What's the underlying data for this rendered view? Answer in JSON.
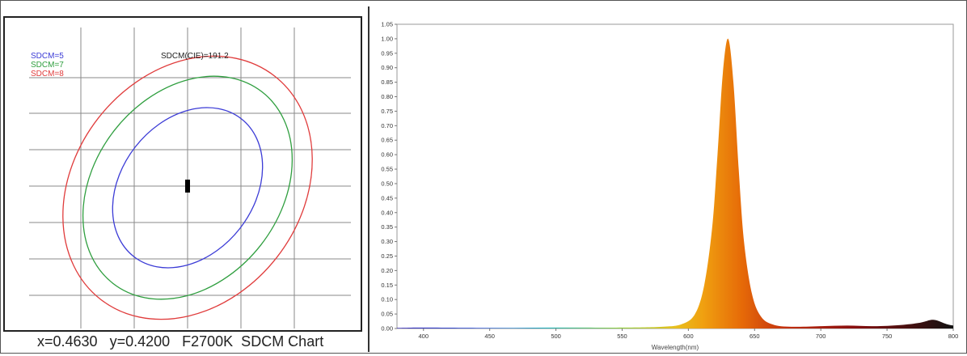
{
  "sdcm_caption": "x=0.4630   y=0.4200   F2700K  SDCM Chart",
  "chart_data": [
    {
      "type": "scatter",
      "title": "SDCM(CIE)=191.2",
      "legend_placement": "top-left",
      "series": [
        {
          "name": "SDCM=5",
          "shape": "ellipse",
          "color": "#3b3bd6"
        },
        {
          "name": "SDCM=7",
          "shape": "ellipse",
          "color": "#2e9e3e"
        },
        {
          "name": "SDCM=8",
          "shape": "ellipse",
          "color": "#e03c3c"
        }
      ],
      "points": [
        {
          "label": "measured point",
          "color": "#000000"
        }
      ],
      "grid": true
    },
    {
      "type": "area",
      "xlabel": "Wavelength(nm)",
      "ylabel": "",
      "xlim": [
        380,
        800
      ],
      "ylim": [
        0,
        1.05
      ],
      "x_ticks": [
        "400",
        "450",
        "500",
        "550",
        "600",
        "650",
        "700",
        "750",
        "800"
      ],
      "y_ticks": [
        "0.00",
        "0.05",
        "0.10",
        "0.15",
        "0.20",
        "0.25",
        "0.30",
        "0.35",
        "0.40",
        "0.45",
        "0.50",
        "0.55",
        "0.60",
        "0.65",
        "0.70",
        "0.75",
        "0.80",
        "0.85",
        "0.90",
        "0.95",
        "1.00",
        "1.05"
      ],
      "grid": false,
      "fill": "spectrum-colored",
      "peak": {
        "x": 630,
        "y": 1.0
      },
      "series": [
        {
          "values": [
            {
              "x": 380,
              "y": 0.002
            },
            {
              "x": 400,
              "y": 0.003
            },
            {
              "x": 450,
              "y": 0.002
            },
            {
              "x": 500,
              "y": 0.003
            },
            {
              "x": 550,
              "y": 0.003
            },
            {
              "x": 580,
              "y": 0.006
            },
            {
              "x": 595,
              "y": 0.015
            },
            {
              "x": 605,
              "y": 0.05
            },
            {
              "x": 612,
              "y": 0.15
            },
            {
              "x": 618,
              "y": 0.35
            },
            {
              "x": 622,
              "y": 0.6
            },
            {
              "x": 626,
              "y": 0.88
            },
            {
              "x": 630,
              "y": 1.0
            },
            {
              "x": 634,
              "y": 0.85
            },
            {
              "x": 638,
              "y": 0.55
            },
            {
              "x": 642,
              "y": 0.3
            },
            {
              "x": 648,
              "y": 0.12
            },
            {
              "x": 655,
              "y": 0.04
            },
            {
              "x": 665,
              "y": 0.012
            },
            {
              "x": 680,
              "y": 0.006
            },
            {
              "x": 700,
              "y": 0.008
            },
            {
              "x": 720,
              "y": 0.01
            },
            {
              "x": 740,
              "y": 0.008
            },
            {
              "x": 760,
              "y": 0.012
            },
            {
              "x": 775,
              "y": 0.02
            },
            {
              "x": 785,
              "y": 0.03
            },
            {
              "x": 795,
              "y": 0.015
            },
            {
              "x": 800,
              "y": 0.01
            }
          ]
        }
      ]
    }
  ]
}
